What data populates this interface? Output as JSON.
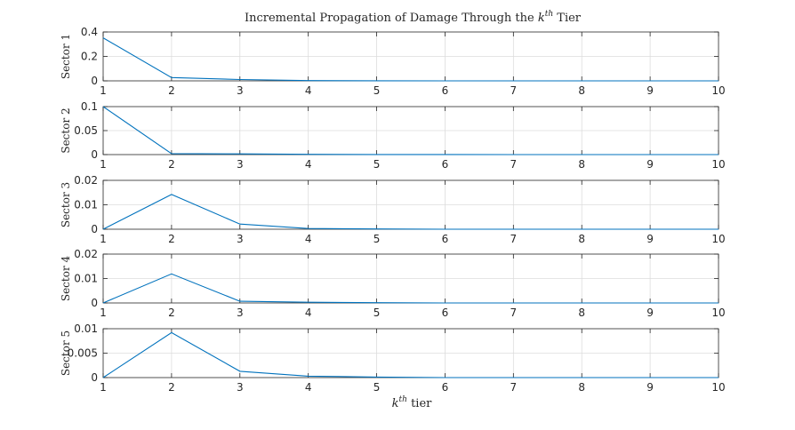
{
  "chart_data": {
    "type": "line",
    "title_main": "Incremental Propagation of Damage Through the ",
    "title_k": "k",
    "title_sup": "th",
    "title_end": " Tier",
    "xlabel_k": "k",
    "xlabel_sup": "th",
    "xlabel_end": " tier",
    "x": [
      1,
      2,
      3,
      4,
      5,
      6,
      7,
      8,
      9,
      10
    ],
    "xlim": [
      1,
      10
    ],
    "grid": true,
    "series_color": "#0072BD",
    "subplots": [
      {
        "ylabel": "Sector 1",
        "ylim": [
          0,
          0.4
        ],
        "yticks": [
          0,
          0.2,
          0.4
        ],
        "ytick_labels": [
          "0",
          "0.2",
          "0.4"
        ],
        "values": [
          0.352,
          0.027,
          0.011,
          0.002,
          0.0005,
          0.0002,
          0.0001,
          0,
          0,
          0
        ]
      },
      {
        "ylabel": "Sector 2",
        "ylim": [
          0,
          0.1
        ],
        "yticks": [
          0,
          0.05,
          0.1
        ],
        "ytick_labels": [
          "0",
          "0.05",
          "0.1"
        ],
        "values": [
          0.1,
          0.002,
          0.0015,
          0.0005,
          0.0002,
          0.0001,
          0,
          0,
          0,
          0
        ]
      },
      {
        "ylabel": "Sector 3",
        "ylim": [
          0,
          0.02
        ],
        "yticks": [
          0,
          0.01,
          0.02
        ],
        "ytick_labels": [
          "0",
          "0.01",
          "0.02"
        ],
        "values": [
          0,
          0.0142,
          0.0021,
          0.0003,
          0.0001,
          0,
          0,
          0,
          0,
          0
        ]
      },
      {
        "ylabel": "Sector 4",
        "ylim": [
          0,
          0.02
        ],
        "yticks": [
          0,
          0.01,
          0.02
        ],
        "ytick_labels": [
          "0",
          "0.01",
          "0.02"
        ],
        "values": [
          0,
          0.0119,
          0.0007,
          0.0003,
          0.0001,
          0,
          0,
          0,
          0,
          0
        ]
      },
      {
        "ylabel": "Sector 5",
        "ylim": [
          0,
          0.01
        ],
        "yticks": [
          0,
          0.005,
          0.01
        ],
        "ytick_labels": [
          "0",
          "0.005",
          "0.01"
        ],
        "values": [
          0,
          0.0092,
          0.0013,
          0.0003,
          0.0001,
          0,
          0,
          0,
          0,
          0
        ]
      }
    ]
  }
}
